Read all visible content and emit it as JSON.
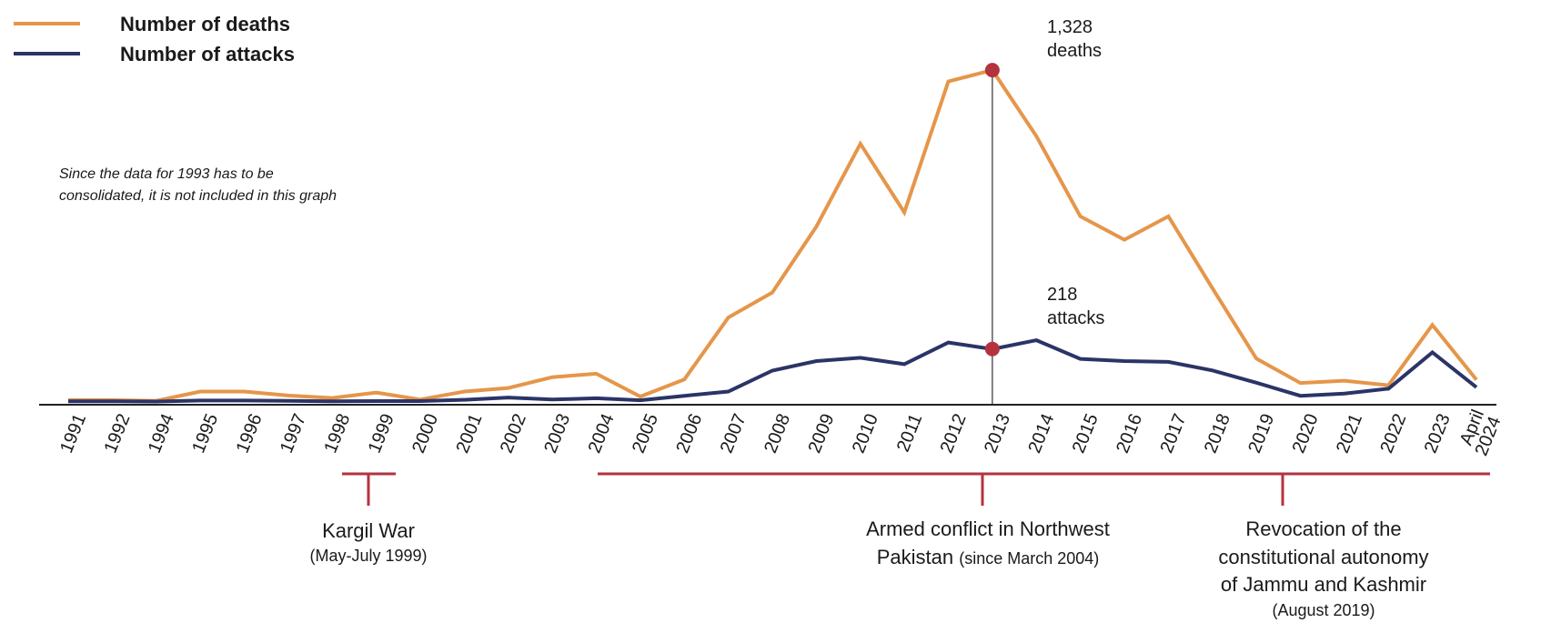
{
  "chart_data": {
    "type": "line",
    "categories": [
      "1991",
      "1992",
      "1994",
      "1995",
      "1996",
      "1997",
      "1998",
      "1999",
      "2000",
      "2001",
      "2002",
      "2003",
      "2004",
      "2005",
      "2006",
      "2007",
      "2008",
      "2009",
      "2010",
      "2011",
      "2012",
      "2013",
      "2014",
      "2015",
      "2016",
      "2017",
      "2018",
      "2019",
      "2020",
      "2021",
      "2022",
      "2023",
      "April 2024"
    ],
    "highlight_category_color": "#8B1A2B",
    "series": [
      {
        "name": "Number of deaths",
        "color": "#E5964A",
        "values": [
          15,
          15,
          12,
          49,
          49,
          33,
          23,
          45,
          17,
          49,
          63,
          106,
          120,
          29,
          97,
          343,
          443,
          705,
          1035,
          762,
          1283,
          1328,
          1065,
          746,
          653,
          746,
          460,
          180,
          83,
          92,
          74,
          314,
          96
        ]
      },
      {
        "name": "Number of attacks",
        "color": "#2B3467",
        "values": [
          10,
          10,
          9,
          13,
          13,
          12,
          10,
          11,
          11,
          16,
          25,
          17,
          22,
          14,
          32,
          49,
          132,
          170,
          183,
          158,
          244,
          218,
          253,
          179,
          170,
          167,
          133,
          84,
          32,
          41,
          60,
          205,
          66
        ]
      }
    ],
    "ylim": [
      0,
      1400
    ],
    "grid": false,
    "legend": "top-left",
    "note": [
      "Since the data for 1993 has to be",
      "consolidated, it is not included in this graph"
    ],
    "highlight": {
      "category": "2013",
      "marker_color": "#B5323F",
      "deaths_label": [
        "1,328",
        "deaths"
      ],
      "attacks_label": [
        "218",
        "attacks"
      ]
    },
    "events": [
      {
        "title": [
          "Kargil War"
        ],
        "subtitle": "(May-July 1999)",
        "from": "1998",
        "to": "1999",
        "color": "#B5323F"
      },
      {
        "title": [
          "Armed conflict in Northwest",
          "Pakistan "
        ],
        "subtitle": "(since March 2004)",
        "from": "2004",
        "to": "April 2024",
        "color": "#B5323F"
      },
      {
        "title": [
          "Revocation of the",
          "constitutional autonomy",
          "of Jammu and Kashmir"
        ],
        "subtitle": "(August 2019)",
        "from": "2019",
        "to": "April 2024",
        "color": "#B5323F"
      }
    ]
  }
}
